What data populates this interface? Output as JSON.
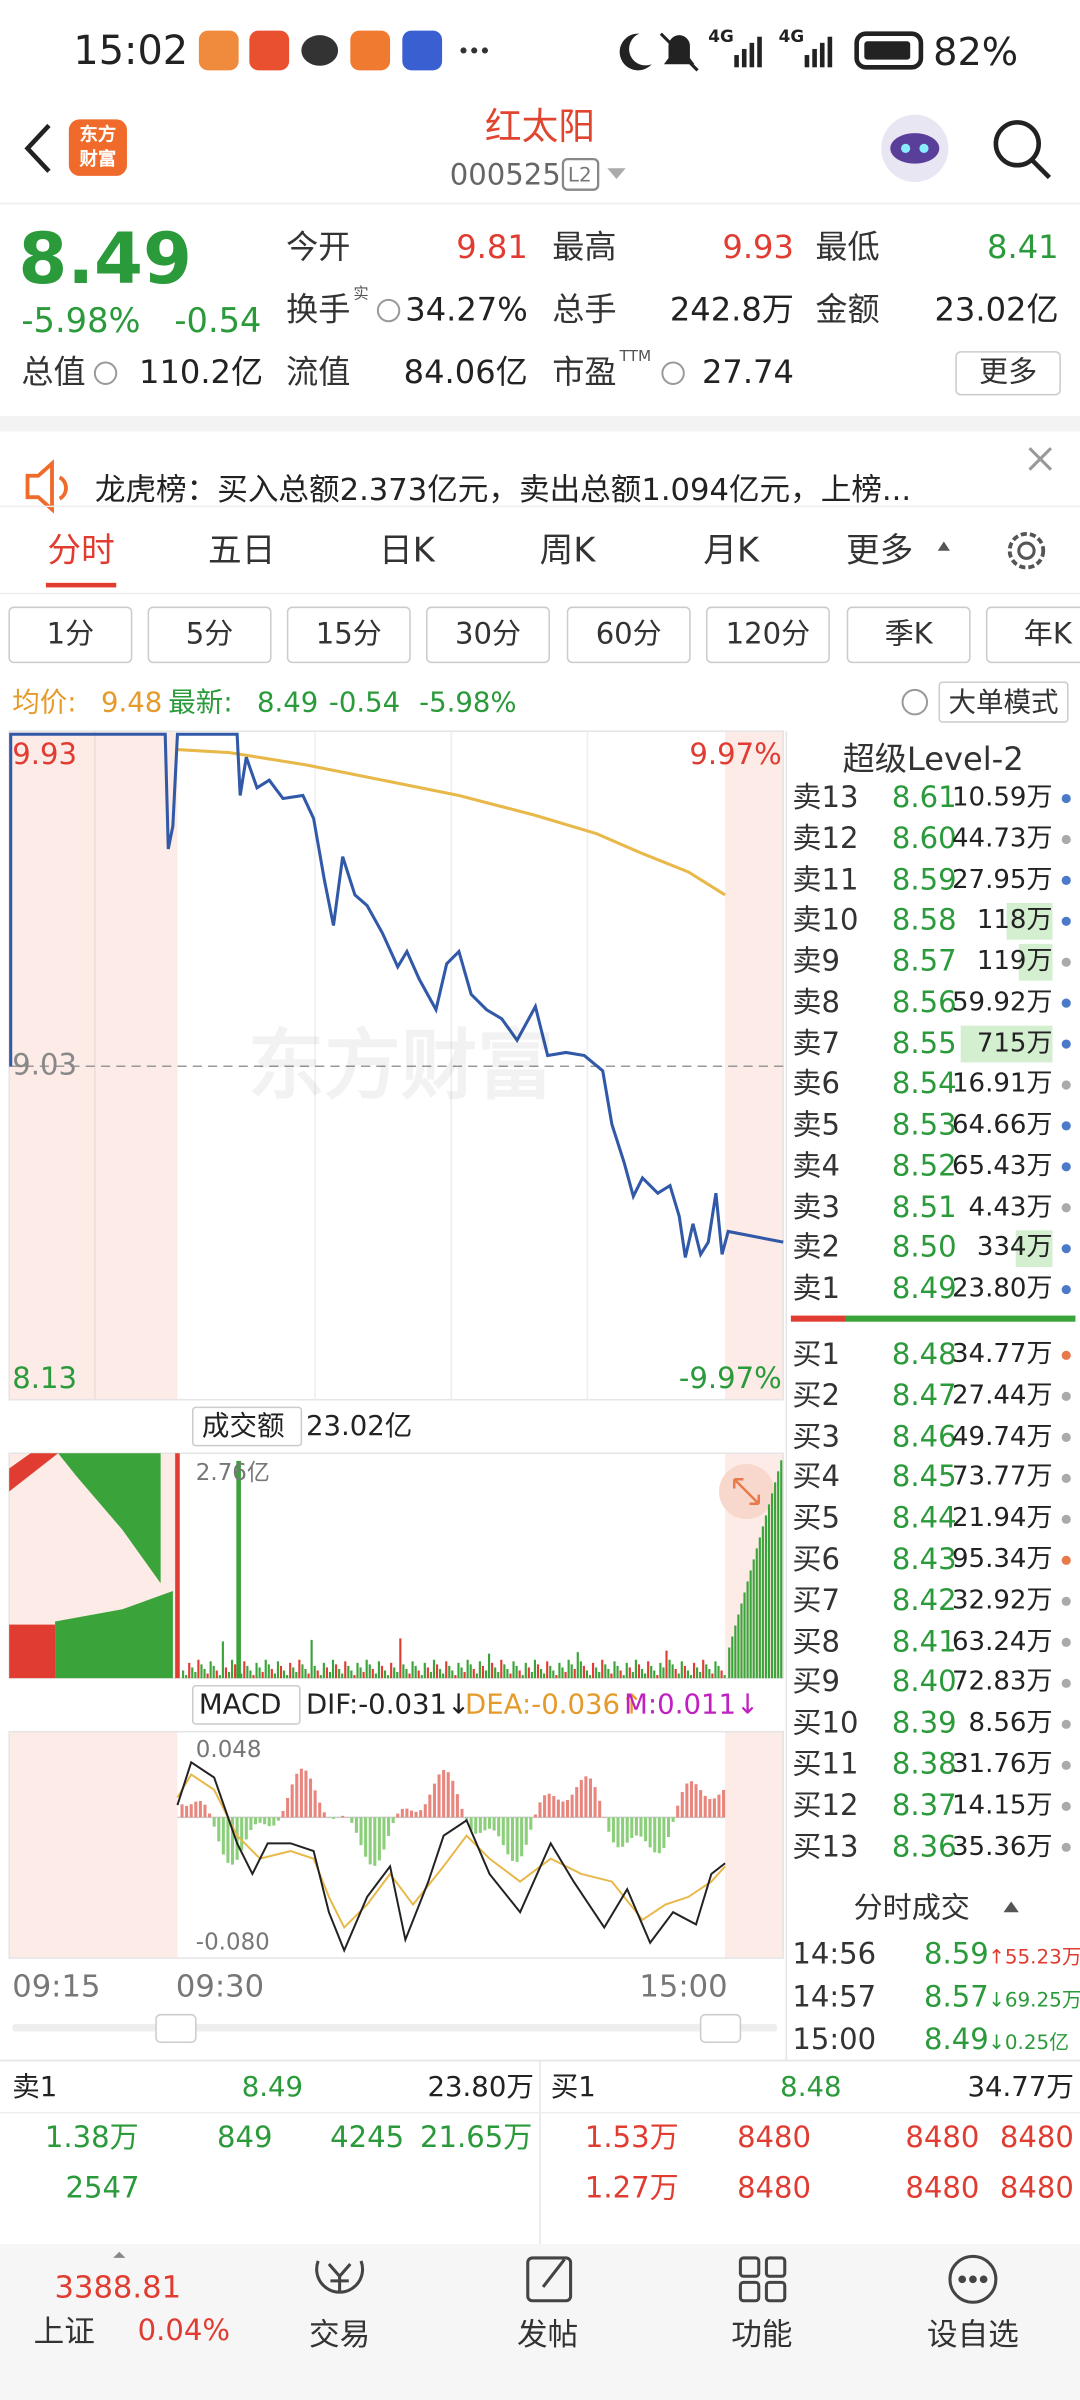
{
  "status_bar": {
    "time": "15:02",
    "net1": "4G",
    "net2": "4G",
    "battery": "82%"
  },
  "header": {
    "logo_line1": "东方",
    "logo_line2": "财富",
    "title": "红太阳",
    "code": "000525",
    "badge": "L2"
  },
  "quote": {
    "price": "8.49",
    "change_pct": "-5.98%",
    "change": "-0.54",
    "fields": [
      {
        "label": "今开",
        "value": "9.81"
      },
      {
        "label": "最高",
        "value": "9.93"
      },
      {
        "label": "最低",
        "value": "8.41"
      },
      {
        "label": "换手",
        "sup": "实",
        "value": "34.27%"
      },
      {
        "label": "总手",
        "value": "242.8万"
      },
      {
        "label": "金额",
        "value": "23.02亿"
      },
      {
        "label": "总值",
        "value": "110.2亿"
      },
      {
        "label": "流值",
        "value": "84.06亿"
      },
      {
        "label": "市盈",
        "sup": "TTM",
        "value": "27.74"
      }
    ],
    "more": "更多"
  },
  "notice": "龙虎榜：买入总额2.373亿元，卖出总额1.094亿元，上榜...",
  "tabs": [
    "分时",
    "五日",
    "日K",
    "周K",
    "月K",
    "更多"
  ],
  "periods": [
    "1分",
    "5分",
    "15分",
    "30分",
    "60分",
    "120分",
    "季K",
    "年K"
  ],
  "info_line": {
    "avg_label": "均价:",
    "avg": "9.48",
    "latest_label": "最新:",
    "latest": "8.49",
    "change": "-0.54",
    "pct": "-5.98%",
    "mode": "大单模式"
  },
  "chart": {
    "y_top": "9.93",
    "y_mid": "9.03",
    "y_bot": "8.13",
    "pct_top": "9.97%",
    "pct_bot": "-9.97%",
    "watermark": "东方财富",
    "volume_label": "成交额",
    "volume": "23.02亿",
    "volume_max": "2.76亿",
    "macd_label": "MACD",
    "dif": "DIF:-0.031↓",
    "dea": "DEA:-0.036↑",
    "m": "M:0.011↓",
    "macd_top": "0.048",
    "macd_bot": "-0.080",
    "times": [
      "09:15",
      "09:30",
      "15:00"
    ]
  },
  "level2": {
    "title": "超级Level-2",
    "asks": [
      [
        "卖13",
        "8.61",
        "10.59万"
      ],
      [
        "卖12",
        "8.60",
        "44.73万"
      ],
      [
        "卖11",
        "8.59",
        "27.95万"
      ],
      [
        "卖10",
        "8.58",
        "118万"
      ],
      [
        "卖9",
        "8.57",
        "119万"
      ],
      [
        "卖8",
        "8.56",
        "59.92万"
      ],
      [
        "卖7",
        "8.55",
        "715万"
      ],
      [
        "卖6",
        "8.54",
        "16.91万"
      ],
      [
        "卖5",
        "8.53",
        "64.66万"
      ],
      [
        "卖4",
        "8.52",
        "65.43万"
      ],
      [
        "卖3",
        "8.51",
        "4.43万"
      ],
      [
        "卖2",
        "8.50",
        "334万"
      ],
      [
        "卖1",
        "8.49",
        "23.80万"
      ]
    ],
    "bids": [
      [
        "买1",
        "8.48",
        "34.77万"
      ],
      [
        "买2",
        "8.47",
        "27.44万"
      ],
      [
        "买3",
        "8.46",
        "49.74万"
      ],
      [
        "买4",
        "8.45",
        "73.77万"
      ],
      [
        "买5",
        "8.44",
        "21.94万"
      ],
      [
        "买6",
        "8.43",
        "95.34万"
      ],
      [
        "买7",
        "8.42",
        "32.92万"
      ],
      [
        "买8",
        "8.41",
        "63.24万"
      ],
      [
        "买9",
        "8.40",
        "72.83万"
      ],
      [
        "买10",
        "8.39",
        "8.56万"
      ],
      [
        "买11",
        "8.38",
        "31.76万"
      ],
      [
        "买12",
        "8.37",
        "14.15万"
      ],
      [
        "买13",
        "8.36",
        "35.36万"
      ]
    ]
  },
  "trades": {
    "title": "分时成交",
    "rows": [
      {
        "time": "14:56",
        "price": "8.59",
        "vol": "↑55.23万"
      },
      {
        "time": "14:57",
        "price": "8.57",
        "vol": "↓69.25万"
      },
      {
        "time": "15:00",
        "price": "8.49",
        "vol": "↓0.25亿"
      }
    ]
  },
  "bottom": {
    "sell": {
      "label": "卖1",
      "price": "8.49",
      "vol": "23.80万",
      "rows": [
        [
          "1.38万",
          "849",
          "4245",
          "21.65万"
        ],
        [
          "2547"
        ]
      ]
    },
    "buy": {
      "label": "买1",
      "price": "8.48",
      "vol": "34.77万",
      "rows": [
        [
          "1.53万",
          "8480",
          "8480",
          "8480"
        ],
        [
          "1.27万",
          "8480",
          "8480",
          "8480"
        ]
      ]
    }
  },
  "nav": {
    "index_value": "3388.81",
    "index_name": "上证",
    "index_pct": "0.04%",
    "items": [
      "交易",
      "发帖",
      "功能",
      "设自选"
    ]
  }
}
